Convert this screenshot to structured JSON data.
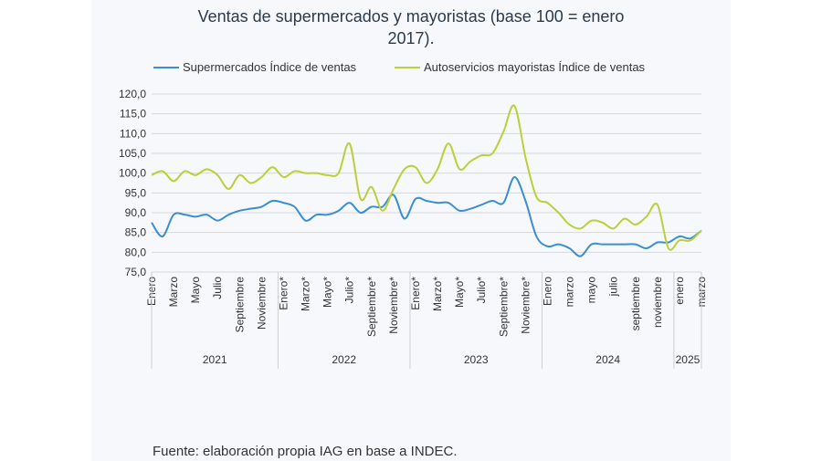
{
  "chart_data": {
    "type": "line",
    "title_line1": "Ventas de supermercados y mayoristas (base 100 = enero",
    "title_line2": "2017).",
    "ylim": [
      75,
      120
    ],
    "yticks": [
      "75,0",
      "80,0",
      "85,0",
      "90,0",
      "95,0",
      "100,0",
      "105,0",
      "110,0",
      "115,0",
      "120,0"
    ],
    "grid": true,
    "legend_position": "top",
    "x_tick_labels": [
      "Enero",
      "",
      "Marzo",
      "",
      "Mayo",
      "",
      "Julio",
      "",
      "Septiembre",
      "",
      "Noviembre",
      "",
      "Enero*",
      "",
      "Marzo*",
      "",
      "Mayo*",
      "",
      "Julio*",
      "",
      "Septiembre*",
      "",
      "Noviembre*",
      "",
      "Enero*",
      "",
      "Marzo*",
      "",
      "Mayo*",
      "",
      "Julio*",
      "",
      "Septiembre*",
      "",
      "Noviembre*",
      "",
      "Enero",
      "",
      "marzo",
      "",
      "mayo",
      "",
      "julio",
      "",
      "septiembre",
      "",
      "noviembre",
      "",
      "enero",
      "",
      "marzo"
    ],
    "year_groups": [
      {
        "label": "2021",
        "start": 0,
        "end": 11
      },
      {
        "label": "2022",
        "start": 12,
        "end": 23
      },
      {
        "label": "2023",
        "start": 24,
        "end": 35
      },
      {
        "label": "2024",
        "start": 36,
        "end": 47
      },
      {
        "label": "2025",
        "start": 48,
        "end": 50
      }
    ],
    "series": [
      {
        "name": "Supermercados Índice de ventas",
        "color": "#3a8fd0",
        "values": [
          87.5,
          84,
          89.5,
          89.5,
          89,
          89.5,
          88,
          89.5,
          90.5,
          91,
          91.5,
          93,
          92.5,
          91.5,
          88,
          89.5,
          89.5,
          90.5,
          92.5,
          90,
          91.5,
          91.5,
          94.5,
          88.5,
          93.5,
          93,
          92.5,
          92.5,
          90.5,
          91,
          92,
          93,
          92.5,
          99,
          93,
          84,
          81.5,
          82,
          81,
          79,
          82,
          82,
          82,
          82,
          82,
          81,
          82.5,
          82.5,
          84,
          83.5,
          85.5
        ]
      },
      {
        "name": "Autoservicios mayoristas Índice de ventas",
        "color": "#bccf3a",
        "values": [
          99.5,
          100.5,
          98,
          100.5,
          99.5,
          101,
          99.5,
          96,
          99.5,
          97.5,
          99,
          101.5,
          99,
          100.5,
          100,
          100,
          99.5,
          100,
          107.5,
          93.5,
          96.5,
          90.5,
          96,
          101,
          101.5,
          97.5,
          101,
          107.5,
          101,
          103,
          104.5,
          105,
          110.5,
          117,
          104,
          94,
          92.5,
          90,
          87,
          86,
          88,
          87.5,
          86,
          88.5,
          87,
          89,
          92,
          81,
          83,
          83,
          85.5
        ]
      }
    ],
    "source": "Fuente: elaboración propia IAG en base a INDEC."
  }
}
